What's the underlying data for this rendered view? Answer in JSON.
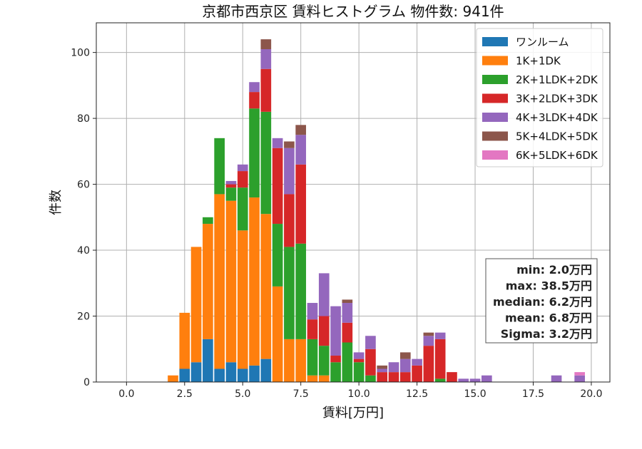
{
  "chart_data": {
    "type": "bar",
    "stacked": true,
    "title": "京都市西京区 賃料ヒストグラム 物件数: 941件",
    "xlabel": "賃料[万円]",
    "ylabel": "件数",
    "xlim": [
      -1.3,
      20.8
    ],
    "ylim": [
      0,
      109
    ],
    "x_ticks": [
      0.0,
      2.5,
      5.0,
      7.5,
      10.0,
      12.5,
      15.0,
      17.5,
      20.0
    ],
    "x_tick_labels": [
      "0.0",
      "2.5",
      "5.0",
      "7.5",
      "10.0",
      "12.5",
      "15.0",
      "17.5",
      "20.0"
    ],
    "y_ticks": [
      0,
      20,
      40,
      60,
      80,
      100
    ],
    "y_tick_labels": [
      "0",
      "20",
      "40",
      "60",
      "80",
      "100"
    ],
    "grid": true,
    "legend_position": "top-right",
    "bin_width": 0.5,
    "bin_left_edges": [
      1.75,
      2.25,
      2.75,
      3.25,
      3.75,
      4.25,
      4.75,
      5.25,
      5.75,
      6.25,
      6.75,
      7.25,
      7.75,
      8.25,
      8.75,
      9.25,
      9.75,
      10.25,
      10.75,
      11.25,
      11.75,
      12.25,
      12.75,
      13.25,
      13.75,
      14.25,
      14.75,
      15.25,
      18.25,
      19.25
    ],
    "series": [
      {
        "name": "ワンルーム",
        "color": "#1f77b4",
        "values": [
          0,
          4,
          6,
          13,
          4,
          6,
          4,
          5,
          7,
          0,
          0,
          0,
          0,
          0,
          0,
          0,
          0,
          0,
          0,
          0,
          0,
          0,
          0,
          0,
          0,
          0,
          0,
          0,
          0,
          0
        ]
      },
      {
        "name": "1K+1DK",
        "color": "#ff7f0e",
        "values": [
          2,
          17,
          35,
          35,
          53,
          49,
          42,
          51,
          44,
          29,
          13,
          13,
          2,
          2,
          0,
          0,
          0,
          0,
          0,
          0,
          0,
          0,
          0,
          0,
          0,
          0,
          0,
          0,
          0,
          0
        ]
      },
      {
        "name": "2K+1LDK+2DK",
        "color": "#2ca02c",
        "values": [
          0,
          0,
          0,
          2,
          17,
          4,
          13,
          27,
          31,
          19,
          28,
          29,
          11,
          9,
          6,
          12,
          6,
          2,
          0,
          0,
          0,
          0,
          0,
          1,
          0,
          0,
          0,
          0,
          0,
          0
        ]
      },
      {
        "name": "3K+2LDK+3DK",
        "color": "#d62728",
        "values": [
          0,
          0,
          0,
          0,
          0,
          1,
          5,
          5,
          13,
          23,
          16,
          24,
          6,
          9,
          2,
          6,
          1,
          8,
          3,
          3,
          3,
          5,
          11,
          12,
          3,
          0,
          0,
          0,
          0,
          0
        ]
      },
      {
        "name": "4K+3LDK+4DK",
        "color": "#9467bd",
        "values": [
          0,
          0,
          0,
          0,
          0,
          1,
          2,
          3,
          6,
          3,
          14,
          9,
          5,
          13,
          15,
          6,
          2,
          4,
          1,
          3,
          4,
          2,
          3,
          2,
          0,
          1,
          1,
          2,
          2,
          2
        ]
      },
      {
        "name": "5K+4LDK+5DK",
        "color": "#8c564b",
        "values": [
          0,
          0,
          0,
          0,
          0,
          0,
          0,
          0,
          3,
          0,
          2,
          3,
          0,
          0,
          0,
          1,
          0,
          0,
          1,
          0,
          2,
          0,
          1,
          0,
          0,
          0,
          0,
          0,
          0,
          0
        ]
      },
      {
        "name": "6K+5LDK+6DK",
        "color": "#e377c2",
        "values": [
          0,
          0,
          0,
          0,
          0,
          0,
          0,
          0,
          0,
          0,
          0,
          0,
          0,
          0,
          0,
          0,
          0,
          0,
          0,
          0,
          0,
          0,
          0,
          0,
          0,
          0,
          0,
          0,
          0,
          1
        ]
      }
    ],
    "stats": [
      "min: 2.0万円",
      "max: 38.5万円",
      "median: 6.2万円",
      "mean: 6.8万円",
      "Sigma: 3.2万円"
    ]
  }
}
